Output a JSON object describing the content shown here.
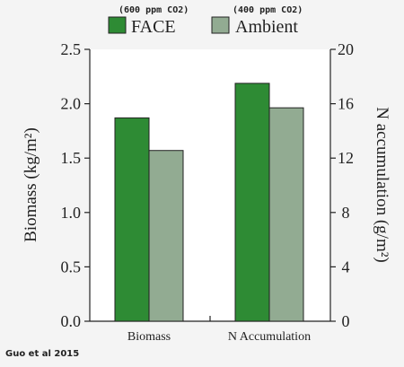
{
  "chart_data": {
    "type": "bar",
    "categories": [
      "Biomass",
      "N Accumulation"
    ],
    "series": [
      {
        "name": "FACE",
        "note": "(600 ppm CO2)",
        "color": "#2e8b34",
        "values": [
          1.87,
          17.5
        ]
      },
      {
        "name": "Ambient",
        "note": "(400 ppm CO2)",
        "color": "#92ab92",
        "values": [
          1.57,
          15.7
        ]
      }
    ],
    "value_axis_per_category": [
      "left",
      "right"
    ],
    "ylabel_left": "Biomass (kg/m²)",
    "ylabel_right": "N accumulation (g/m²)",
    "ylim_left": [
      0,
      2.5
    ],
    "ylim_right": [
      0,
      20
    ],
    "yticks_left": [
      "0.0",
      "0.5",
      "1.0",
      "1.5",
      "2.0",
      "2.5"
    ],
    "yticks_right": [
      "0",
      "4",
      "8",
      "12",
      "16",
      "20"
    ],
    "grid": false,
    "legend_position": "top"
  },
  "credit": "Guo et al 2015"
}
